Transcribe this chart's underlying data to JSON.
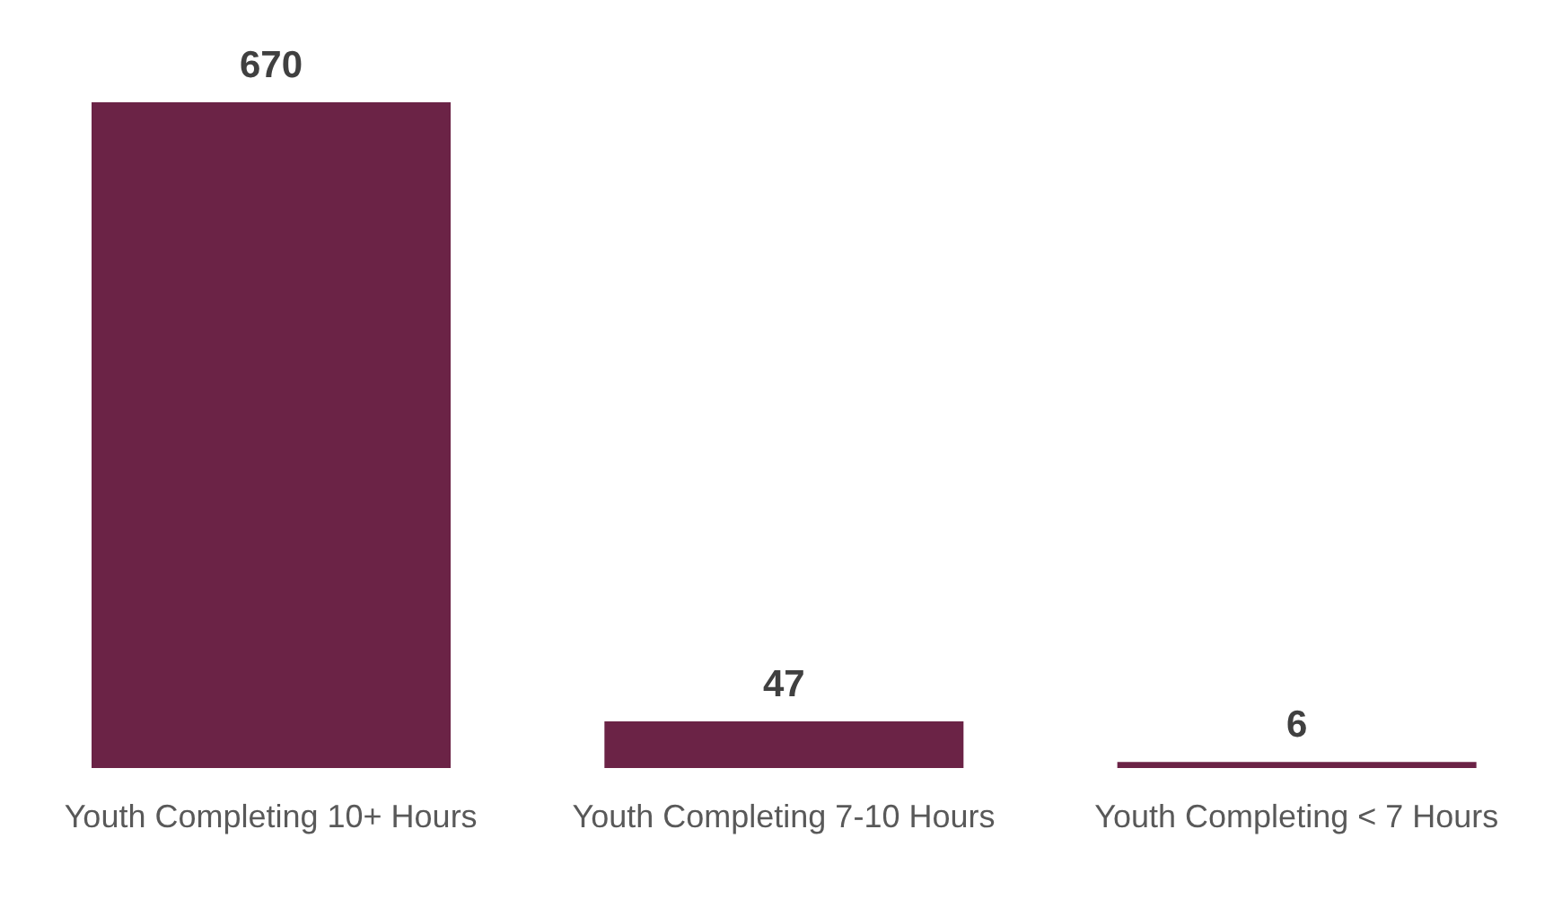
{
  "chart_data": {
    "type": "bar",
    "categories": [
      "Youth Completing 10+ Hours",
      "Youth Completing 7-10 Hours",
      "Youth Completing < 7 Hours"
    ],
    "values": [
      670,
      47,
      6
    ],
    "color": "#6b2346",
    "data_labels": true,
    "grid": false,
    "legend": false
  }
}
